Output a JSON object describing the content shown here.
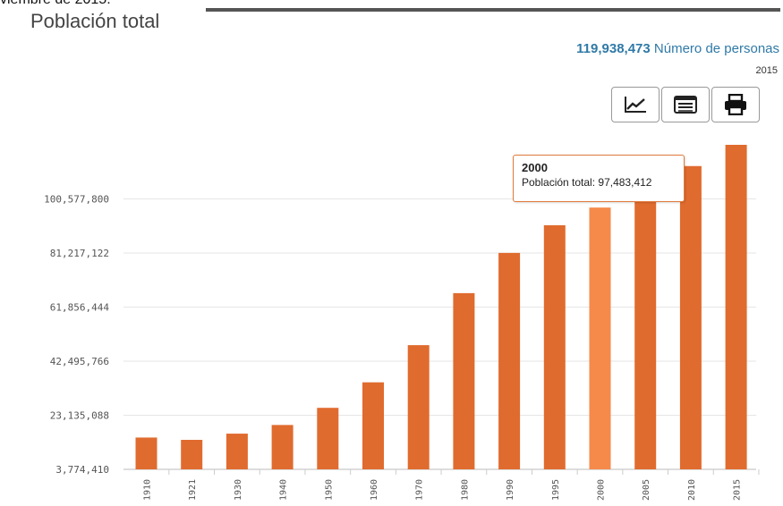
{
  "page": {
    "top_clip_text": "viembre de 2015.",
    "title": "Población total",
    "summary": {
      "value": "119,938,473",
      "unit": "Número de personas",
      "year": "2015"
    }
  },
  "toolbar": {
    "buttons": [
      {
        "icon": "line-chart-icon"
      },
      {
        "icon": "table-icon"
      },
      {
        "icon": "printer-icon"
      }
    ]
  },
  "colors": {
    "bar": "#e06b2e",
    "bar_highlight": "#f58a4b",
    "grid": "#e6e6e6",
    "summary": "#2f7aa7"
  },
  "tooltip": {
    "year": "2000",
    "label": "Población total",
    "value": "97,483,412"
  },
  "chart_data": {
    "type": "bar",
    "categories": [
      "1910",
      "1921",
      "1930",
      "1940",
      "1950",
      "1960",
      "1970",
      "1980",
      "1990",
      "1995",
      "2000",
      "2005",
      "2010",
      "2015"
    ],
    "series": [
      {
        "name": "Población total",
        "values": [
          15160369,
          14334780,
          16552722,
          19653552,
          25791017,
          34923129,
          48225238,
          66846833,
          81249645,
          91158290,
          97483412,
          103263388,
          112336538,
          119938473
        ]
      }
    ],
    "y_ticks": [
      "3,774,410",
      "23,135,088",
      "42,495,766",
      "61,856,444",
      "81,217,122",
      "100,577,800"
    ],
    "y_tick_values": [
      3774410,
      23135088,
      42495766,
      61856444,
      81217122,
      100577800
    ],
    "highlight_category": "2000",
    "grid": true
  }
}
